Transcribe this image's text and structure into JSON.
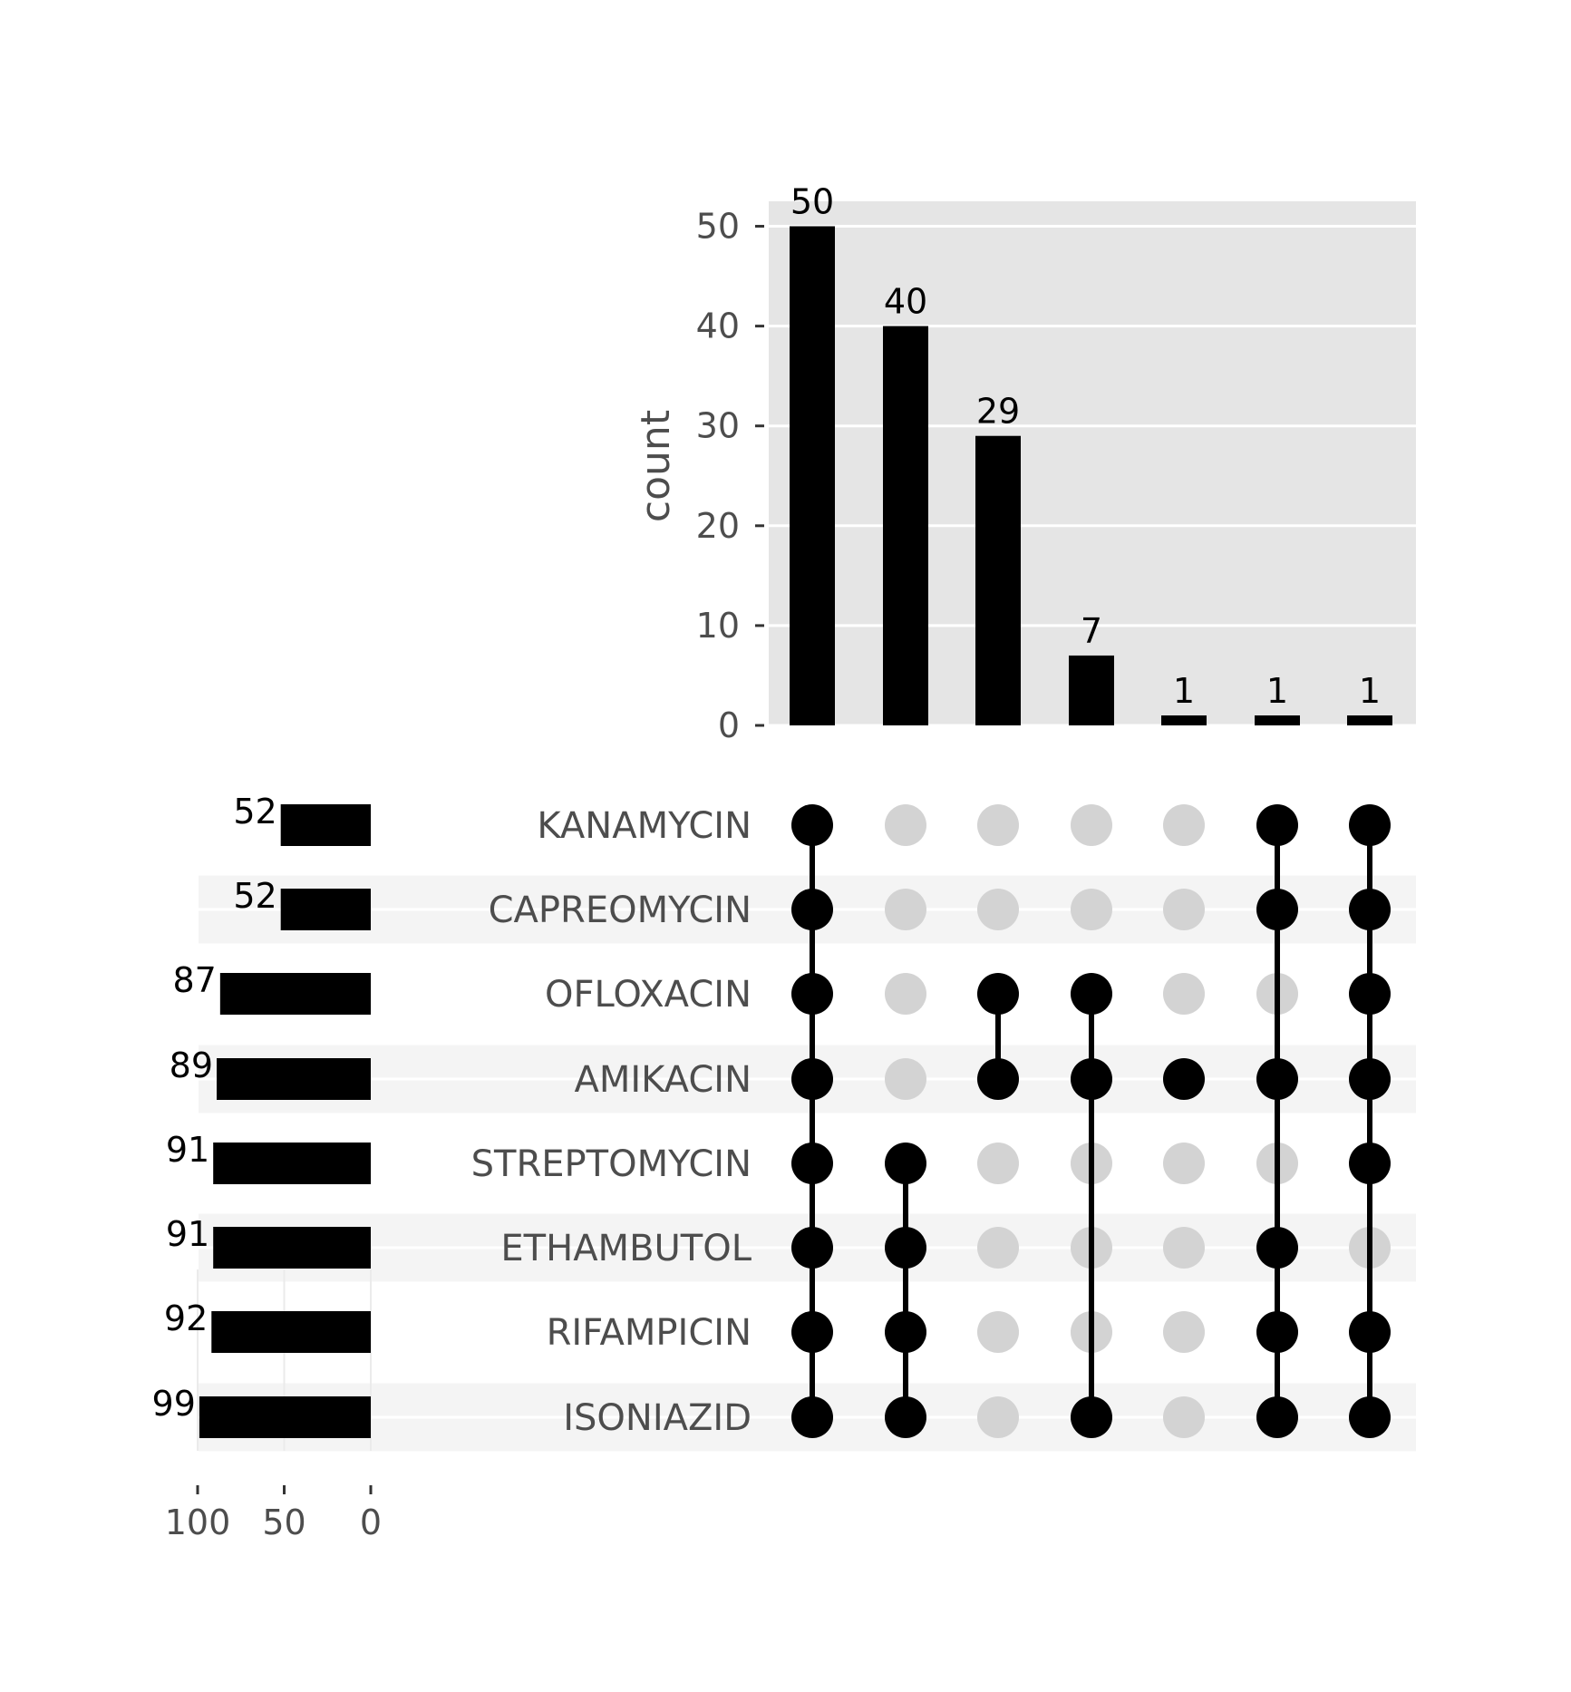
{
  "chart_data": {
    "type": "upset",
    "title": "",
    "intersections": {
      "ylabel": "count",
      "ylim": [
        0,
        52.5
      ],
      "yticks": [
        0,
        10,
        20,
        30,
        40,
        50
      ],
      "values": [
        50,
        40,
        29,
        7,
        1,
        1,
        1
      ],
      "membership": [
        [
          "KANAMYCIN",
          "CAPREOMYCIN",
          "OFLOXACIN",
          "AMIKACIN",
          "STREPTOMYCIN",
          "ETHAMBUTOL",
          "RIFAMPICIN",
          "ISONIAZID"
        ],
        [
          "STREPTOMYCIN",
          "ETHAMBUTOL",
          "RIFAMPICIN",
          "ISONIAZID"
        ],
        [
          "OFLOXACIN",
          "AMIKACIN"
        ],
        [
          "OFLOXACIN",
          "AMIKACIN",
          "ISONIAZID"
        ],
        [
          "AMIKACIN"
        ],
        [
          "KANAMYCIN",
          "CAPREOMYCIN",
          "AMIKACIN",
          "ETHAMBUTOL",
          "RIFAMPICIN",
          "ISONIAZID"
        ],
        [
          "KANAMYCIN",
          "CAPREOMYCIN",
          "OFLOXACIN",
          "AMIKACIN",
          "STREPTOMYCIN",
          "RIFAMPICIN",
          "ISONIAZID"
        ]
      ]
    },
    "sets": [
      {
        "name": "KANAMYCIN",
        "size": 52
      },
      {
        "name": "CAPREOMYCIN",
        "size": 52
      },
      {
        "name": "OFLOXACIN",
        "size": 87
      },
      {
        "name": "AMIKACIN",
        "size": 89
      },
      {
        "name": "STREPTOMYCIN",
        "size": 91
      },
      {
        "name": "ETHAMBUTOL",
        "size": 91
      },
      {
        "name": "RIFAMPICIN",
        "size": 92
      },
      {
        "name": "ISONIAZID",
        "size": 99
      }
    ],
    "set_size_axis": {
      "ticks": [
        100,
        50,
        0
      ],
      "reversed": true
    },
    "grid": true,
    "colors": {
      "bar": "#000000",
      "dot_active": "#000000",
      "dot_inactive": "#d3d3d3",
      "panel_bg": "#e5e5e5",
      "stripe": "#f4f4f4"
    }
  }
}
